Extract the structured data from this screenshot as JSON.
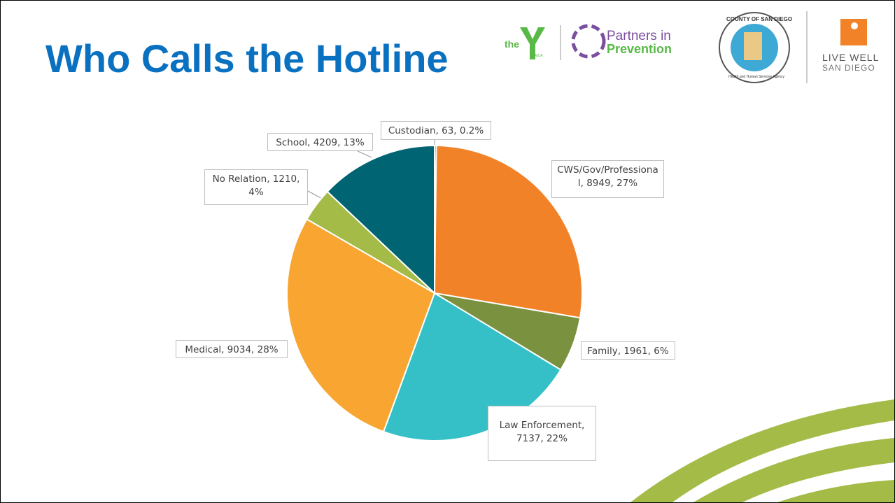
{
  "title": "Who Calls the Hotline",
  "logos": {
    "ymca": [
      "the",
      "YMCA"
    ],
    "partners": [
      "Partners in",
      "Prevention"
    ],
    "county": [
      "COUNTY OF SAN DIEGO",
      "Health and Human Services Agency"
    ],
    "livewell": [
      "LIVE WELL",
      "SAN DIEGO"
    ]
  },
  "chart_data": {
    "type": "pie",
    "labels": [
      "Custodian, 63, 0.2%",
      "CWS/Gov/Professional, 8949, 27%",
      "Family, 1961, 6%",
      "Law Enforcement, 7137, 22%",
      "Medical, 9034, 28%",
      "No Relation, 1210, 4%",
      "School, 4209, 13%"
    ],
    "values": [
      63,
      8949,
      1961,
      7137,
      9034,
      1210,
      4209
    ],
    "colors": [
      "#4472c4",
      "#f28228",
      "#7a9140",
      "#35c0c7",
      "#f8a532",
      "#a4bb48",
      "#006473"
    ]
  }
}
